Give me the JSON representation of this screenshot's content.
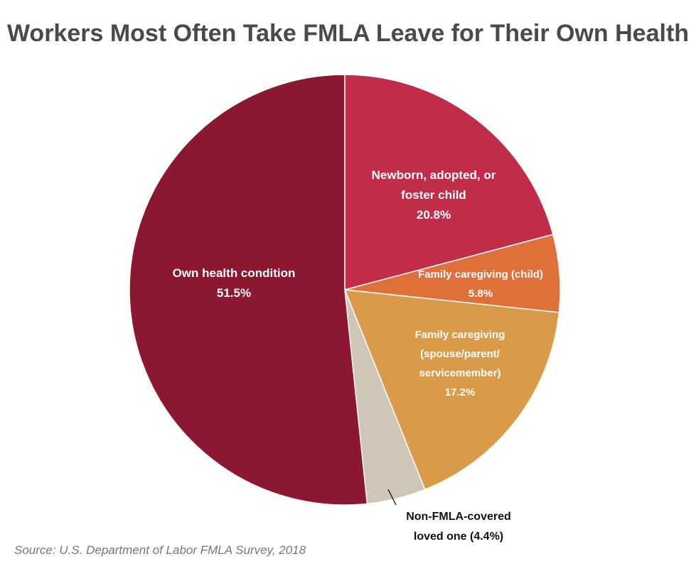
{
  "chart_data": {
    "type": "pie",
    "title": "Workers Most Often Take FMLA Leave for Their Own Health",
    "start_angle": "top, clockwise",
    "slices": [
      {
        "name": "Newborn, adopted, or foster child",
        "value": 20.8,
        "color": "#C12D48",
        "label_lines": [
          "Newborn, adopted, or",
          "foster child",
          "20.8%"
        ]
      },
      {
        "name": "Family caregiving (child)",
        "value": 5.8,
        "color": "#DF703A",
        "label_lines": [
          "Family caregiving (child)",
          "5.8%"
        ]
      },
      {
        "name": "Family caregiving (spouse/parent/servicemember)",
        "value": 17.2,
        "color": "#D99B4A",
        "label_lines": [
          "Family caregiving",
          "(spouse/parent/",
          "servicemember)",
          "17.2%"
        ]
      },
      {
        "name": "Non-FMLA-covered loved one",
        "value": 4.4,
        "color": "#CFC6B8",
        "label_lines": [
          "Non-FMLA-covered",
          "loved one (4.4%)"
        ]
      },
      {
        "name": "Own health condition",
        "value": 51.5,
        "color": "#8B1830",
        "label_lines": [
          "Own health condition",
          "51.5%"
        ]
      }
    ],
    "source": "Source: U.S. Department of Labor FMLA Survey, 2018"
  }
}
